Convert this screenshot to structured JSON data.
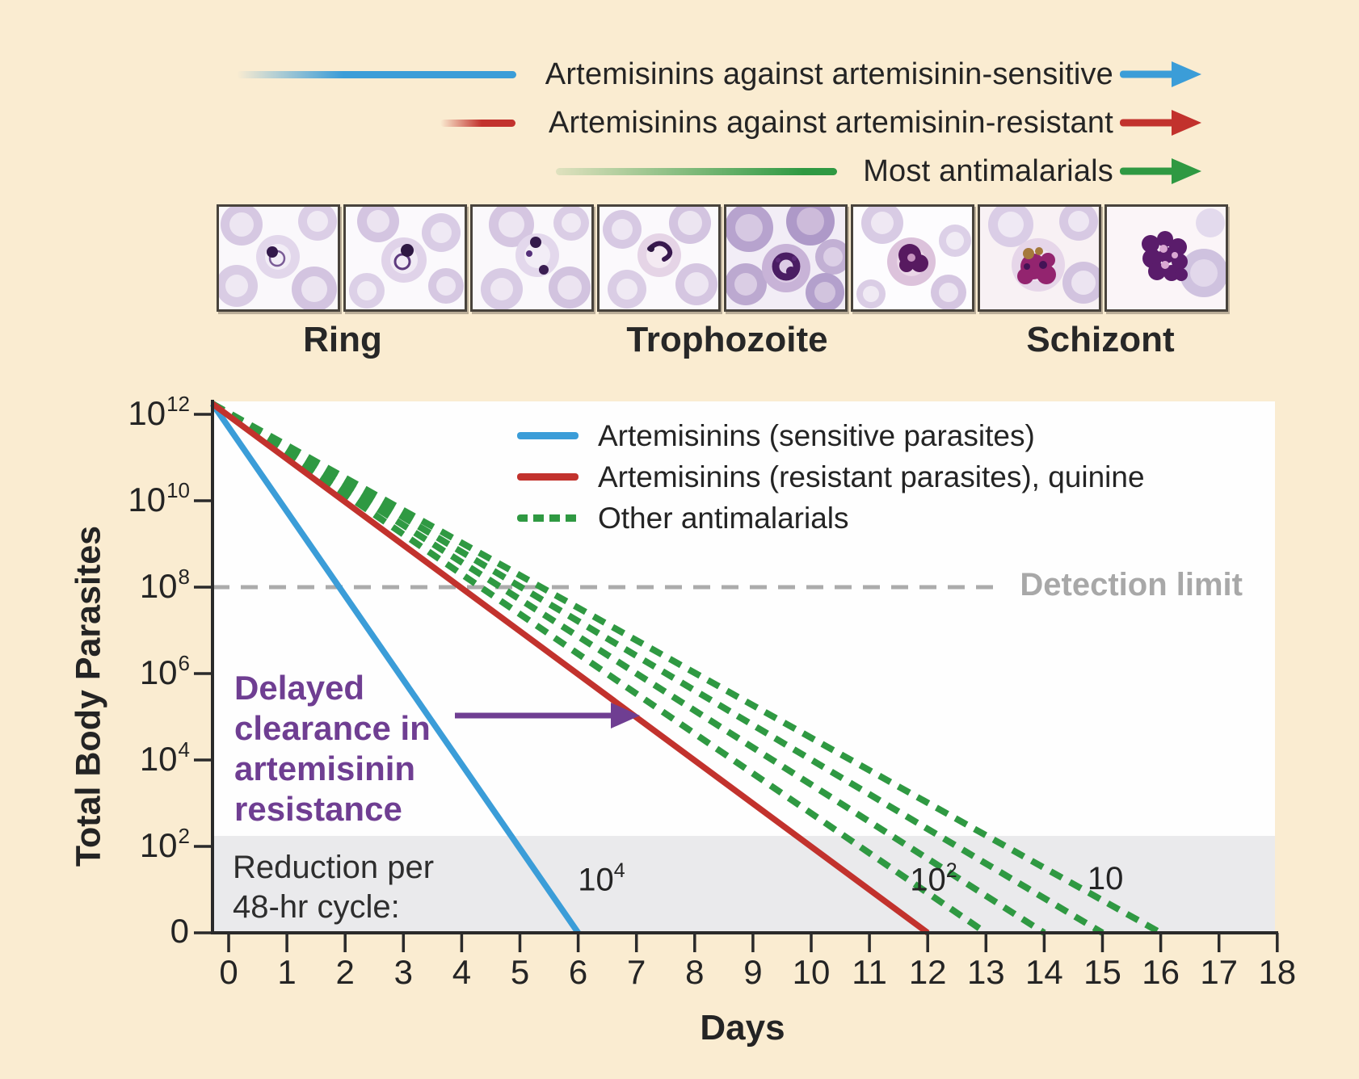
{
  "figure": {
    "background_color": "#FAECD1",
    "top_arrows": [
      {
        "label": "Artemisinins against artemisinin-sensitive",
        "color": "#3B9DD8"
      },
      {
        "label": "Artemisinins against artemisinin-resistant",
        "color": "#C2322D"
      },
      {
        "label": "Most antimalarials",
        "color": "#2F9942"
      }
    ],
    "stages": {
      "labels": [
        "Ring",
        "Trophozoite",
        "Schizont"
      ],
      "photo_stages": [
        "ring",
        "ring",
        "ring",
        "early trophozoite",
        "trophozoite",
        "trophozoite",
        "schizont",
        "schizont"
      ]
    }
  },
  "chart_data": {
    "type": "line",
    "xlabel": "Days",
    "ylabel": "Total Body Parasites",
    "x_ticks": [
      0,
      1,
      2,
      3,
      4,
      5,
      6,
      7,
      8,
      9,
      10,
      11,
      12,
      13,
      14,
      15,
      16,
      17,
      18
    ],
    "x_range": [
      0,
      18
    ],
    "y_axis_scale": "log10 exponents, bottom tick is zero",
    "y_exponents": [
      12,
      10,
      8,
      6,
      4,
      2,
      0
    ],
    "y_ticks": [
      {
        "base": "10",
        "exp": "12"
      },
      {
        "base": "10",
        "exp": "10"
      },
      {
        "base": "10",
        "exp": "8"
      },
      {
        "base": "10",
        "exp": "6"
      },
      {
        "base": "10",
        "exp": "4"
      },
      {
        "base": "10",
        "exp": "2"
      },
      {
        "base": "0",
        "exp": ""
      }
    ],
    "start_point": {
      "day": 0,
      "exponent": 12
    },
    "series": [
      {
        "name": "Artemisinins (sensitive parasites)",
        "color": "#3B9DD8",
        "dashed": false,
        "zero_days": [
          6
        ],
        "cycle_label": {
          "base": "10",
          "exp": "4",
          "day": 6.4
        }
      },
      {
        "name": "Artemisinins (resistant parasites), quinine",
        "color": "#C2322D",
        "dashed": false,
        "zero_days": [
          12
        ],
        "cycle_label": {
          "base": "10",
          "exp": "2",
          "day": 12.1
        }
      },
      {
        "name": "Other antimalarials",
        "color": "#2F9942",
        "dashed": true,
        "zero_days": [
          13,
          14,
          15,
          16
        ],
        "cycle_label": {
          "base": "10",
          "exp": "",
          "day": 15.05
        }
      }
    ],
    "detection_limit": {
      "label": "Detection limit",
      "exponent": 8,
      "color": "#ABABAB"
    },
    "annotations": {
      "delayed_text": "Delayed\nclearance in\nartemisinin\nresistance",
      "delayed_color": "#6F3E92",
      "reduction_caption": "Reduction per\n48-hr cycle:"
    },
    "legend_position": "upper middle, inside plot",
    "grid": false
  }
}
